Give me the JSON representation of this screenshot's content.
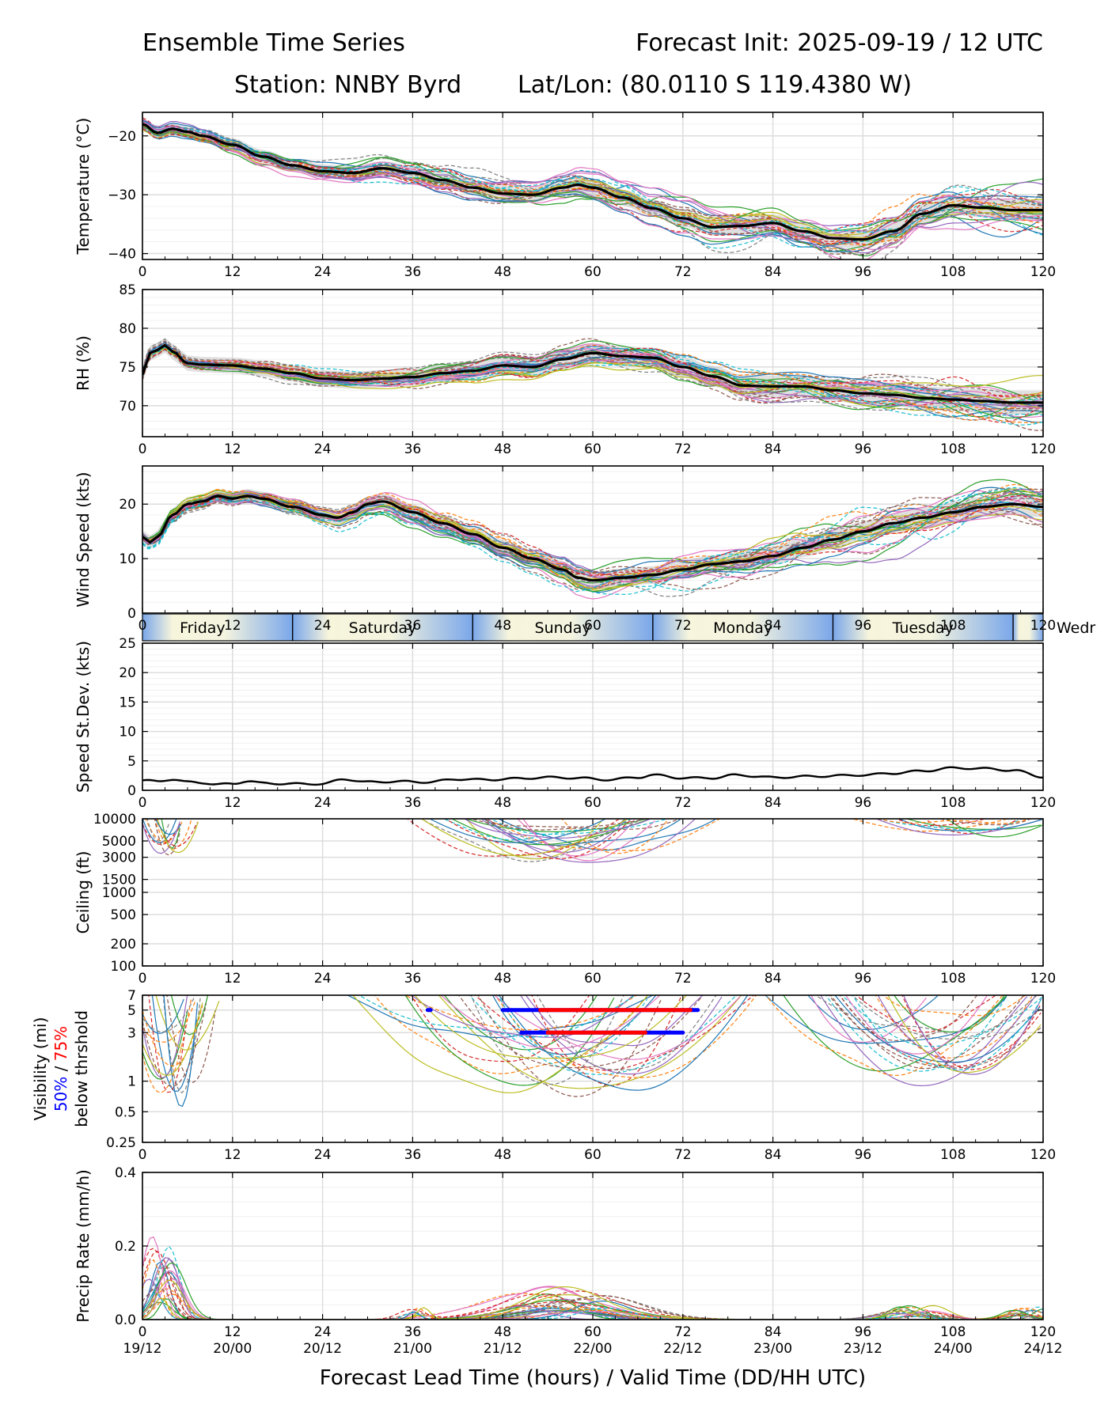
{
  "title": {
    "left": "Ensemble Time Series",
    "right": "Forecast Init: 2025-09-19 / 12 UTC",
    "station": "Station: NNBY Byrd",
    "latlon": "Lat/Lon: (80.0110 S 119.4380 W)"
  },
  "xlabel": "Forecast Lead Time (hours) / Valid Time (DD/HH UTC)",
  "x_ticks": [
    0,
    12,
    24,
    36,
    48,
    60,
    72,
    84,
    96,
    108,
    120
  ],
  "x_tick_labels": [
    "0",
    "12",
    "24",
    "36",
    "48",
    "60",
    "72",
    "84",
    "96",
    "108",
    "120"
  ],
  "valid_time_labels": [
    "19/12",
    "20/00",
    "20/12",
    "21/00",
    "21/12",
    "22/00",
    "22/12",
    "23/00",
    "23/12",
    "24/00",
    "24/12"
  ],
  "member_colors": [
    "#1f77b4",
    "#ff7f0e",
    "#2ca02c",
    "#d62728",
    "#9467bd",
    "#8c564b",
    "#e377c2",
    "#7f7f7f",
    "#bcbd22",
    "#17becf"
  ],
  "chart_data": [
    {
      "id": "temperature",
      "type": "line",
      "ylabel": "Temperature (°C)",
      "ylim": [
        -41,
        -16
      ],
      "yticks": [
        -20,
        -30,
        -40
      ],
      "yticklabels": [
        "−20",
        "−30",
        "−40"
      ],
      "ygrid_minor": true,
      "spread": 2.6,
      "members": 30,
      "band": 1.3,
      "series": [
        {
          "name": "Ensemble mean",
          "x": [
            0,
            2,
            4,
            6,
            8,
            12,
            16,
            20,
            24,
            28,
            32,
            36,
            40,
            44,
            48,
            52,
            56,
            58,
            60,
            64,
            68,
            72,
            76,
            80,
            84,
            88,
            92,
            96,
            100,
            104,
            108,
            112,
            116,
            120
          ],
          "y": [
            -18,
            -19.5,
            -18.8,
            -19.3,
            -20,
            -21.5,
            -23.5,
            -25,
            -26,
            -26.3,
            -25.5,
            -26.3,
            -27.5,
            -28.8,
            -29.8,
            -30,
            -28.8,
            -28.3,
            -28.8,
            -30.5,
            -32.3,
            -34,
            -35.5,
            -35.3,
            -34.8,
            -36.2,
            -37.4,
            -37.6,
            -36.2,
            -33.2,
            -31.8,
            -32.2,
            -32.6,
            -32.6
          ]
        }
      ]
    },
    {
      "id": "rh",
      "type": "line",
      "ylabel": "RH (%)",
      "ylim": [
        66,
        85
      ],
      "yticks": [
        70,
        75,
        80,
        85
      ],
      "yticklabels": [
        "70",
        "75",
        "80",
        "85"
      ],
      "ygrid_minor": true,
      "spread": 1.6,
      "members": 30,
      "band": 1.2,
      "series": [
        {
          "name": "Ensemble mean",
          "x": [
            0,
            1,
            2,
            3,
            4,
            6,
            8,
            12,
            16,
            20,
            24,
            28,
            32,
            36,
            40,
            44,
            48,
            52,
            56,
            60,
            64,
            68,
            72,
            76,
            80,
            84,
            88,
            92,
            96,
            100,
            104,
            108,
            112,
            116,
            120
          ],
          "y": [
            74,
            76.8,
            77.2,
            77.8,
            77,
            75.5,
            75.3,
            75.2,
            74.8,
            74.2,
            73.5,
            73.3,
            73.5,
            73.7,
            74.2,
            74.5,
            75.2,
            75,
            76,
            76.8,
            76.4,
            76.2,
            75,
            73.8,
            72.6,
            72.5,
            72.5,
            72,
            71.6,
            71.4,
            71,
            70.8,
            70.6,
            70.4,
            70.4
          ]
        }
      ]
    },
    {
      "id": "wind",
      "type": "line",
      "ylabel": "Wind Speed (kts)",
      "ylim": [
        0,
        27
      ],
      "yticks": [
        0,
        10,
        20
      ],
      "yticklabels": [
        "0",
        "10",
        "20"
      ],
      "ygrid_minor": true,
      "spread": 3.0,
      "members": 30,
      "band": 1.5,
      "series": [
        {
          "name": "Ensemble mean",
          "x": [
            0,
            1,
            2,
            4,
            6,
            8,
            10,
            12,
            14,
            16,
            20,
            24,
            26,
            28,
            30,
            32,
            36,
            40,
            44,
            48,
            52,
            56,
            58,
            60,
            64,
            68,
            72,
            76,
            80,
            84,
            88,
            92,
            96,
            100,
            104,
            108,
            112,
            116,
            120
          ],
          "y": [
            14,
            13,
            14,
            18,
            20,
            20.5,
            21.5,
            21,
            21.5,
            21,
            19.5,
            18,
            17.5,
            18.5,
            20,
            20.5,
            18.5,
            16.5,
            14.5,
            12,
            10,
            8,
            6.5,
            6,
            6.5,
            7,
            8,
            9,
            9.5,
            10.5,
            12,
            13.5,
            15,
            16.5,
            17.5,
            18.5,
            19.5,
            20,
            19.5
          ]
        }
      ]
    },
    {
      "id": "speed_stdev",
      "type": "line",
      "ylabel": "Speed St.Dev. (kts)",
      "ylim": [
        0,
        25
      ],
      "yticks": [
        0,
        5,
        10,
        15,
        20,
        25
      ],
      "yticklabels": [
        "0",
        "5",
        "10",
        "15",
        "20",
        "25"
      ],
      "ygrid_minor": true,
      "series": [
        {
          "name": "Ensemble spread",
          "x": [
            0,
            2,
            4,
            6,
            8,
            10,
            12,
            14,
            16,
            20,
            24,
            27,
            30,
            34,
            38,
            42,
            46,
            50,
            54,
            58,
            62,
            66,
            68,
            72,
            76,
            79,
            84,
            90,
            96,
            100,
            104,
            108,
            112,
            116,
            120
          ],
          "y": [
            1.7,
            1.5,
            1.9,
            1.4,
            1.3,
            1.0,
            1.1,
            1.6,
            1.2,
            1.1,
            1.1,
            1.9,
            1.4,
            1.5,
            1.4,
            1.9,
            1.8,
            2.0,
            2.2,
            2.1,
            1.8,
            2.2,
            2.6,
            2.1,
            2.1,
            2.6,
            2.2,
            2.4,
            2.6,
            2.9,
            3.3,
            3.8,
            3.7,
            3.4,
            2.3
          ]
        }
      ]
    },
    {
      "id": "ceiling",
      "type": "line",
      "yscale": "log",
      "ylabel": "Ceiling (ft)",
      "ylim": [
        100,
        10000
      ],
      "yticks": [
        10000,
        5000,
        3000,
        1500,
        1000,
        500,
        200,
        100
      ],
      "yticklabels": [
        "10000",
        "5000",
        "3000",
        "1500",
        "1000",
        "500",
        "200",
        "100"
      ],
      "members": 26,
      "dips": [
        {
          "x0": 0,
          "x1": 6,
          "center": 3.5,
          "hw": 3,
          "min": 3000,
          "frac": 0.35
        },
        {
          "x0": 38,
          "x1": 76,
          "center": 56,
          "hw": 16,
          "min": 2600,
          "frac": 0.85
        },
        {
          "x0": 96,
          "x1": 120,
          "center": 110,
          "hw": 12,
          "min": 5500,
          "frac": 0.3
        }
      ]
    },
    {
      "id": "visibility",
      "type": "line",
      "yscale": "log",
      "ylabel": "Visibility (mi)",
      "ylabel_sub": [
        "50%",
        " / ",
        "75%"
      ],
      "ylabel_sub2": "below thrshold",
      "ylim": [
        0.25,
        7
      ],
      "yticks": [
        7,
        5,
        3,
        1,
        0.5,
        0.25
      ],
      "yticklabels": [
        "7",
        "5",
        "3",
        "1",
        "0.5",
        "0.25"
      ],
      "members": 30,
      "dips": [
        {
          "x0": 0,
          "x1": 12,
          "center": 4.5,
          "hw": 5,
          "min": 0.65,
          "frac": 0.6
        },
        {
          "x0": 30,
          "x1": 84,
          "center": 56,
          "hw": 20,
          "min": 0.7,
          "frac": 0.9
        },
        {
          "x0": 84,
          "x1": 120,
          "center": 104,
          "hw": 16,
          "min": 1.0,
          "frac": 0.75
        }
      ],
      "threshold_bars": [
        {
          "level": "50%",
          "y": 5,
          "x0": 38,
          "x1": 38.4,
          "color": "#0000ff"
        },
        {
          "level": "50%",
          "y": 5,
          "x0": 48,
          "x1": 74,
          "color": "#0000ff"
        },
        {
          "level": "75%",
          "y": 5,
          "x0": 53,
          "x1": 73,
          "color": "#ff0000"
        },
        {
          "level": "50%",
          "y": 3,
          "x0": 50.5,
          "x1": 72,
          "color": "#0000ff"
        },
        {
          "level": "75%",
          "y": 3,
          "x0": 54,
          "x1": 67,
          "color": "#ff0000"
        }
      ]
    },
    {
      "id": "precip",
      "type": "line",
      "ylabel": "Precip Rate (mm/h)",
      "ylim": [
        0,
        0.4
      ],
      "yticks": [
        0,
        0.2,
        0.4
      ],
      "yticklabels": [
        "0.0",
        "0.2",
        "0.4"
      ],
      "ygrid_minor": true,
      "members": 30,
      "bumps": [
        {
          "center": 2.5,
          "hw": 3.5,
          "max": 0.24,
          "frac": 0.6
        },
        {
          "center": 36,
          "hw": 3,
          "max": 0.05,
          "frac": 0.4
        },
        {
          "center": 56,
          "hw": 12,
          "max": 0.1,
          "frac": 0.9
        },
        {
          "center": 103,
          "hw": 6,
          "max": 0.05,
          "frac": 0.45
        },
        {
          "center": 118,
          "hw": 4,
          "max": 0.04,
          "frac": 0.5
        }
      ]
    }
  ],
  "day_strip": {
    "labels": [
      "Friday",
      "Saturday",
      "Sunday",
      "Monday",
      "Tuesday",
      "Wedr"
    ],
    "boundaries": [
      20,
      44,
      68,
      92,
      116
    ],
    "centers": [
      8,
      32,
      56,
      80,
      104
    ]
  }
}
